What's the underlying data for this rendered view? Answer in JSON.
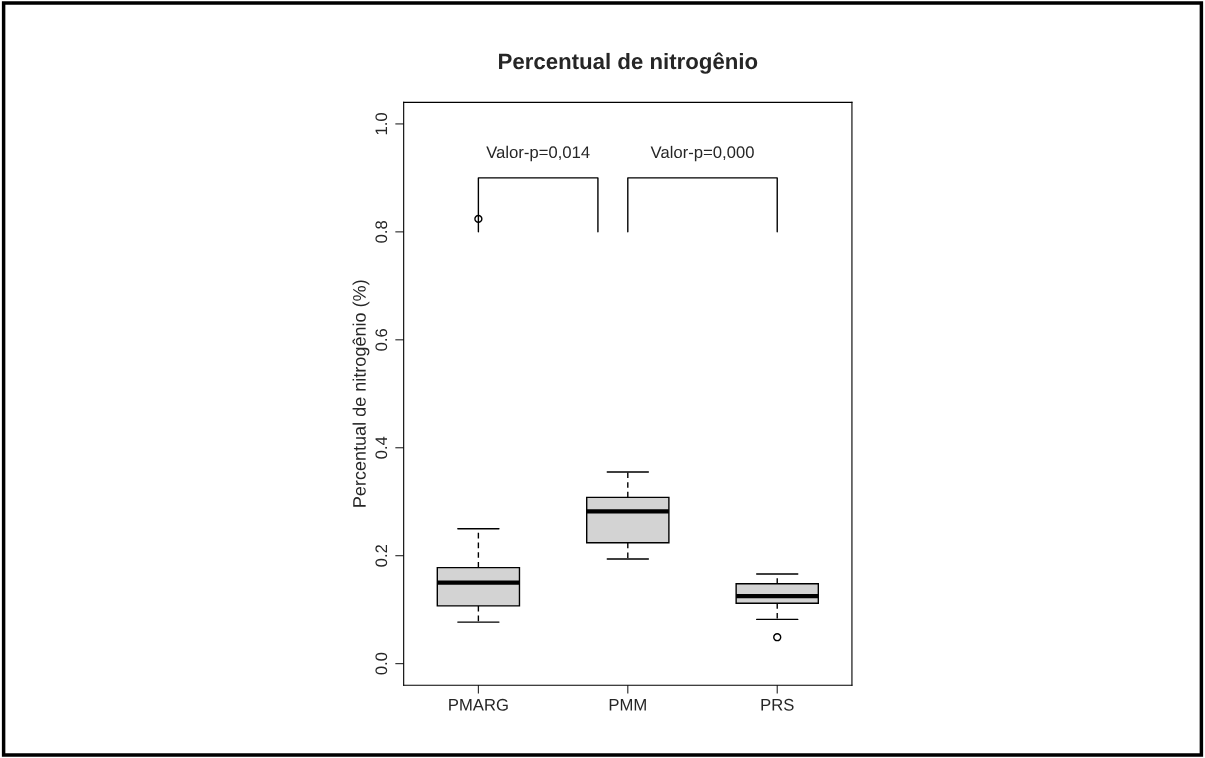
{
  "chart_data": {
    "type": "box",
    "title": "Percentual de nitrogênio",
    "ylabel": "Percentual de nitrogênio (%)",
    "categories": [
      "PMARG",
      "PMM",
      "PRS"
    ],
    "boxes": [
      {
        "low": 0.077,
        "q1": 0.107,
        "median": 0.15,
        "q3": 0.178,
        "high": 0.25,
        "outliers": [
          0.824
        ]
      },
      {
        "low": 0.194,
        "q1": 0.224,
        "median": 0.282,
        "q3": 0.308,
        "high": 0.355
      },
      {
        "low": 0.082,
        "q1": 0.112,
        "median": 0.125,
        "q3": 0.148,
        "high": 0.166,
        "outliers": [
          0.049
        ]
      }
    ],
    "color": "#d3d3d3",
    "ylim": [
      -0.04,
      1.04
    ],
    "yticks": [
      {
        "value": 0,
        "label": "0.0"
      },
      {
        "value": 0.2,
        "label": "0.2"
      },
      {
        "value": 0.4,
        "label": "0.4"
      },
      {
        "value": 0.6,
        "label": "0.6"
      },
      {
        "value": 0.8,
        "label": "0.8"
      },
      {
        "value": 1,
        "label": "1.0"
      }
    ],
    "annotations": [
      "Valor-p=0,014",
      "Valor-p=0,000"
    ],
    "grid": false
  }
}
